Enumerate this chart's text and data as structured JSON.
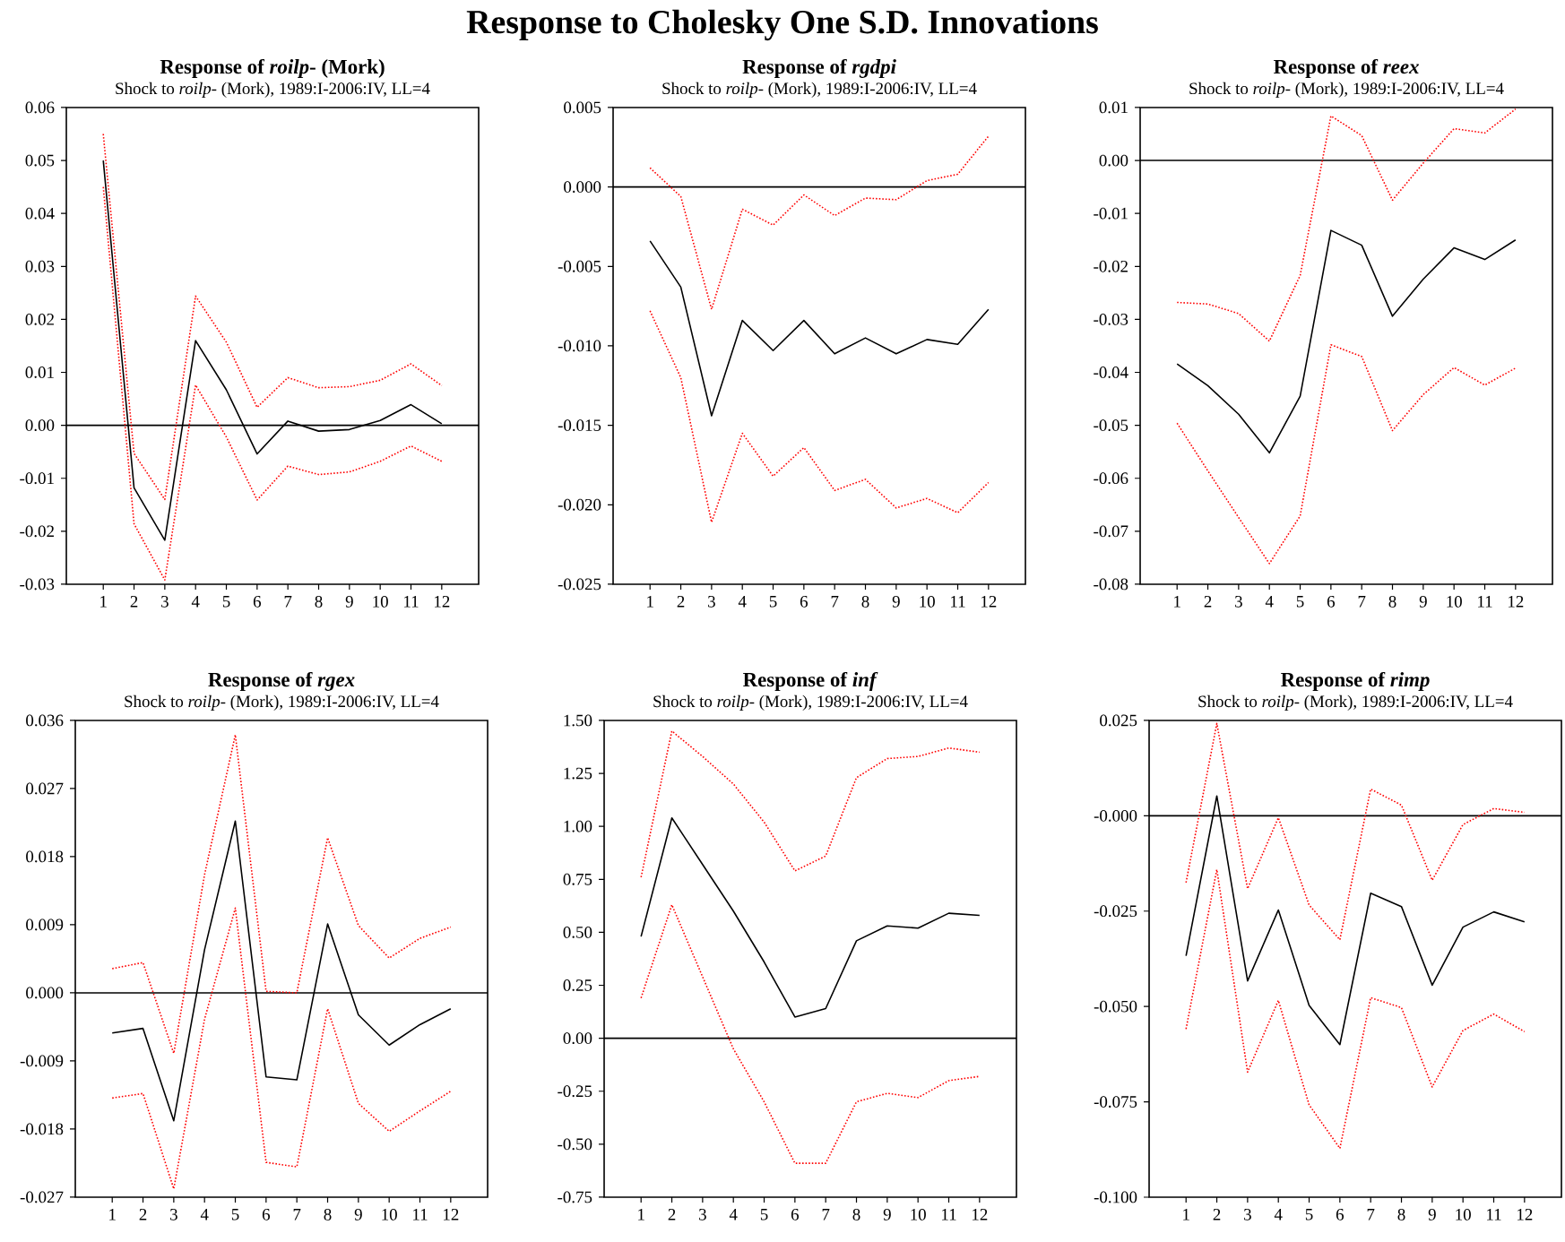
{
  "chart_data": [
    {
      "type": "line",
      "title": "Response of *roilp*- (Mork)",
      "subtitle": "Shock to *roilp*- (Mork), 1989:I-2006:IV, LL=4",
      "annotations": [
        "Response to Cholesky One S.D. Innovations"
      ],
      "categories": [
        "1",
        "2",
        "3",
        "4",
        "5",
        "6",
        "7",
        "8",
        "9",
        "10",
        "11",
        "12"
      ],
      "ylim": [
        -0.03,
        0.06
      ],
      "yticks": [
        {
          "value": -0.03,
          "label": "-0.03"
        },
        {
          "value": -0.02,
          "label": "-0.02"
        },
        {
          "value": -0.01,
          "label": "-0.01"
        },
        {
          "value": 0,
          "label": "0.00"
        },
        {
          "value": 0.01,
          "label": "0.01"
        },
        {
          "value": 0.02,
          "label": "0.02"
        },
        {
          "value": 0.03,
          "label": "0.03"
        },
        {
          "value": 0.04,
          "label": "0.04"
        },
        {
          "value": 0.05,
          "label": "0.05"
        },
        {
          "value": 0.06,
          "label": "0.06"
        }
      ],
      "ref_lines": [
        {
          "axis": "y",
          "value": 0,
          "color": "#000000"
        }
      ],
      "series": [
        {
          "color": "#000000",
          "line_style": "solid",
          "values": [
            0.05,
            -0.0118,
            -0.0217,
            0.016,
            0.0067,
            -0.0054,
            0.0008,
            -0.0011,
            -0.0008,
            0.0009,
            0.0039,
            0.0003
          ]
        },
        {
          "color": "#ff0000",
          "line_style": "dotted",
          "values": [
            0.055,
            -0.0053,
            -0.014,
            0.0244,
            0.0157,
            0.0034,
            0.009,
            0.0071,
            0.0073,
            0.0085,
            0.0116,
            0.0075
          ]
        },
        {
          "color": "#ff0000",
          "line_style": "dotted",
          "values": [
            0.045,
            -0.0186,
            -0.0292,
            0.0076,
            -0.0022,
            -0.0141,
            -0.0077,
            -0.0093,
            -0.0088,
            -0.0068,
            -0.0039,
            -0.0068
          ]
        }
      ]
    },
    {
      "type": "line",
      "title": "Response of *rgdpi*",
      "subtitle": "Shock to *roilp*- (Mork), 1989:I-2006:IV, LL=4",
      "categories": [
        "1",
        "2",
        "3",
        "4",
        "5",
        "6",
        "7",
        "8",
        "9",
        "10",
        "11",
        "12"
      ],
      "ylim": [
        -0.025,
        0.005
      ],
      "yticks": [
        {
          "value": -0.025,
          "label": "-0.025"
        },
        {
          "value": -0.02,
          "label": "-0.020"
        },
        {
          "value": -0.015,
          "label": "-0.015"
        },
        {
          "value": -0.01,
          "label": "-0.010"
        },
        {
          "value": -0.005,
          "label": "-0.005"
        },
        {
          "value": 0,
          "label": "0.000"
        },
        {
          "value": 0.005,
          "label": "0.005"
        }
      ],
      "ref_lines": [
        {
          "axis": "y",
          "value": 0,
          "color": "#000000"
        }
      ],
      "series": [
        {
          "color": "#000000",
          "line_style": "solid",
          "values": [
            -0.0034,
            -0.0063,
            -0.0144,
            -0.0084,
            -0.0103,
            -0.0084,
            -0.0105,
            -0.0095,
            -0.0105,
            -0.0096,
            -0.0099,
            -0.0077
          ]
        },
        {
          "color": "#ff0000",
          "line_style": "dotted",
          "values": [
            0.0012,
            -0.0006,
            -0.0077,
            -0.0014,
            -0.0024,
            -0.0005,
            -0.0018,
            -0.0007,
            -0.0008,
            0.0004,
            0.0008,
            0.0032
          ]
        },
        {
          "color": "#ff0000",
          "line_style": "dotted",
          "values": [
            -0.0078,
            -0.012,
            -0.0211,
            -0.0155,
            -0.0182,
            -0.0164,
            -0.0191,
            -0.0184,
            -0.0202,
            -0.0196,
            -0.0205,
            -0.0186
          ]
        }
      ]
    },
    {
      "type": "line",
      "title": "Response of *reex*",
      "subtitle": "Shock to *roilp*- (Mork), 1989:I-2006:IV, LL=4",
      "categories": [
        "1",
        "2",
        "3",
        "4",
        "5",
        "6",
        "7",
        "8",
        "9",
        "10",
        "11",
        "12"
      ],
      "ylim": [
        -0.08,
        0.01
      ],
      "yticks": [
        {
          "value": -0.08,
          "label": "-0.08"
        },
        {
          "value": -0.07,
          "label": "-0.07"
        },
        {
          "value": -0.06,
          "label": "-0.06"
        },
        {
          "value": -0.05,
          "label": "-0.05"
        },
        {
          "value": -0.04,
          "label": "-0.04"
        },
        {
          "value": -0.03,
          "label": "-0.03"
        },
        {
          "value": -0.02,
          "label": "-0.02"
        },
        {
          "value": -0.01,
          "label": "-0.01"
        },
        {
          "value": 0,
          "label": "0.00"
        },
        {
          "value": 0.01,
          "label": "0.01"
        }
      ],
      "ref_lines": [
        {
          "axis": "y",
          "value": 0,
          "color": "#000000"
        }
      ],
      "series": [
        {
          "color": "#000000",
          "line_style": "solid",
          "values": [
            -0.0384,
            -0.0425,
            -0.0479,
            -0.0552,
            -0.0445,
            -0.0132,
            -0.016,
            -0.0294,
            -0.0224,
            -0.0165,
            -0.0187,
            -0.015
          ]
        },
        {
          "color": "#ff0000",
          "line_style": "dotted",
          "values": [
            -0.0268,
            -0.0271,
            -0.0289,
            -0.0341,
            -0.0217,
            0.0084,
            0.0047,
            -0.0075,
            -0.0005,
            0.006,
            0.0052,
            0.0097
          ]
        },
        {
          "color": "#ff0000",
          "line_style": "dotted",
          "values": [
            -0.0496,
            -0.0586,
            -0.0674,
            -0.0761,
            -0.0671,
            -0.0348,
            -0.037,
            -0.051,
            -0.0442,
            -0.0391,
            -0.0424,
            -0.0392
          ]
        }
      ]
    },
    {
      "type": "line",
      "title": "Response of *rgex*",
      "subtitle": "Shock to *roilp*- (Mork), 1989:I-2006:IV, LL=4",
      "categories": [
        "1",
        "2",
        "3",
        "4",
        "5",
        "6",
        "7",
        "8",
        "9",
        "10",
        "11",
        "12"
      ],
      "ylim": [
        -0.027,
        0.036
      ],
      "yticks": [
        {
          "value": -0.027,
          "label": "-0.027"
        },
        {
          "value": -0.018,
          "label": "-0.018"
        },
        {
          "value": -0.009,
          "label": "-0.009"
        },
        {
          "value": 0,
          "label": "0.000"
        },
        {
          "value": 0.009,
          "label": "0.009"
        },
        {
          "value": 0.018,
          "label": "0.018"
        },
        {
          "value": 0.027,
          "label": "0.027"
        },
        {
          "value": 0.036,
          "label": "0.036"
        }
      ],
      "ref_lines": [
        {
          "axis": "y",
          "value": 0,
          "color": "#000000"
        }
      ],
      "series": [
        {
          "color": "#000000",
          "line_style": "solid",
          "values": [
            -0.0053,
            -0.0047,
            -0.0169,
            0.0057,
            0.0227,
            -0.0111,
            -0.0115,
            0.0091,
            -0.0029,
            -0.0069,
            -0.0042,
            -0.0021
          ]
        },
        {
          "color": "#ff0000",
          "line_style": "dotted",
          "values": [
            0.0032,
            0.004,
            -0.008,
            0.0156,
            0.0341,
            0.0002,
            0.0,
            0.0205,
            0.0089,
            0.0046,
            0.0072,
            0.0087
          ]
        },
        {
          "color": "#ff0000",
          "line_style": "dotted",
          "values": [
            -0.0139,
            -0.0133,
            -0.0259,
            -0.0035,
            0.0112,
            -0.0224,
            -0.023,
            -0.0021,
            -0.0146,
            -0.0183,
            -0.0156,
            -0.013
          ]
        }
      ]
    },
    {
      "type": "line",
      "title": "Response of *inf*",
      "subtitle": "Shock to *roilp*- (Mork), 1989:I-2006:IV, LL=4",
      "categories": [
        "1",
        "2",
        "3",
        "4",
        "5",
        "6",
        "7",
        "8",
        "9",
        "10",
        "11",
        "12"
      ],
      "ylim": [
        -0.75,
        1.5
      ],
      "yticks": [
        {
          "value": -0.75,
          "label": "-0.75"
        },
        {
          "value": -0.5,
          "label": "-0.50"
        },
        {
          "value": -0.25,
          "label": "-0.25"
        },
        {
          "value": 0,
          "label": "0.00"
        },
        {
          "value": 0.25,
          "label": "0.25"
        },
        {
          "value": 0.5,
          "label": "0.50"
        },
        {
          "value": 0.75,
          "label": "0.75"
        },
        {
          "value": 1.0,
          "label": "1.00"
        },
        {
          "value": 1.25,
          "label": "1.25"
        },
        {
          "value": 1.5,
          "label": "1.50"
        }
      ],
      "ref_lines": [
        {
          "axis": "y",
          "value": 0,
          "color": "#000000"
        }
      ],
      "series": [
        {
          "color": "#000000",
          "line_style": "solid",
          "values": [
            0.48,
            1.04,
            0.82,
            0.6,
            0.36,
            0.1,
            0.14,
            0.46,
            0.53,
            0.52,
            0.59,
            0.58
          ]
        },
        {
          "color": "#ff0000",
          "line_style": "dotted",
          "values": [
            0.76,
            1.45,
            1.33,
            1.2,
            1.02,
            0.79,
            0.86,
            1.23,
            1.32,
            1.33,
            1.37,
            1.35
          ]
        },
        {
          "color": "#ff0000",
          "line_style": "dotted",
          "values": [
            0.19,
            0.63,
            0.29,
            -0.05,
            -0.3,
            -0.59,
            -0.59,
            -0.3,
            -0.26,
            -0.28,
            -0.2,
            -0.18
          ]
        }
      ]
    },
    {
      "type": "line",
      "title": "Response of *rimp*",
      "subtitle": "Shock to *roilp*- (Mork), 1989:I-2006:IV, LL=4",
      "categories": [
        "1",
        "2",
        "3",
        "4",
        "5",
        "6",
        "7",
        "8",
        "9",
        "10",
        "11",
        "12"
      ],
      "ylim": [
        -0.1,
        0.025
      ],
      "yticks": [
        {
          "value": -0.1,
          "label": "-0.100"
        },
        {
          "value": -0.075,
          "label": "-0.075"
        },
        {
          "value": -0.05,
          "label": "-0.050"
        },
        {
          "value": -0.025,
          "label": "-0.025"
        },
        {
          "value": 0,
          "label": "-0.000"
        },
        {
          "value": 0.025,
          "label": "0.025"
        }
      ],
      "ref_lines": [
        {
          "axis": "y",
          "value": 0,
          "color": "#000000"
        }
      ],
      "series": [
        {
          "color": "#000000",
          "line_style": "solid",
          "values": [
            -0.0367,
            0.0052,
            -0.0433,
            -0.0247,
            -0.0497,
            -0.06,
            -0.0203,
            -0.0238,
            -0.0444,
            -0.0292,
            -0.0252,
            -0.0278
          ]
        },
        {
          "color": "#ff0000",
          "line_style": "dotted",
          "values": [
            -0.0175,
            0.0242,
            -0.0191,
            -0.0005,
            -0.0234,
            -0.0325,
            0.007,
            0.0028,
            -0.0169,
            -0.0023,
            0.0019,
            0.0009
          ]
        },
        {
          "color": "#ff0000",
          "line_style": "dotted",
          "values": [
            -0.0559,
            -0.0141,
            -0.0672,
            -0.0484,
            -0.0758,
            -0.0872,
            -0.0477,
            -0.0503,
            -0.0711,
            -0.0563,
            -0.052,
            -0.0566
          ]
        }
      ]
    }
  ]
}
